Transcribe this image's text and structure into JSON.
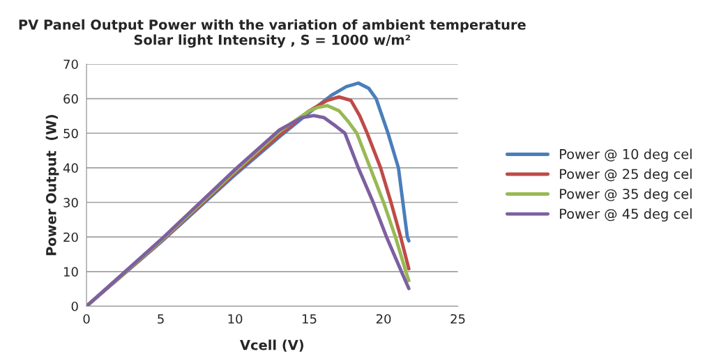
{
  "chart_data": {
    "type": "line",
    "title": "PV Panel Output Power with the variation of ambient temperature\nSolar light Intensity , S = 1000 w/m²",
    "xlabel": "Vcell (V)",
    "ylabel": "Power Output  (W)",
    "xlim": [
      0,
      25
    ],
    "xticks": [
      0,
      5,
      10,
      15,
      20,
      25
    ],
    "ylim": [
      0,
      70
    ],
    "yticks": [
      0,
      10,
      20,
      30,
      40,
      50,
      60,
      70
    ],
    "grid": "y",
    "legend": "right",
    "marker": "none",
    "line_style": "solid",
    "series": [
      {
        "name": "Power @ 10 deg cel",
        "color": "#4a7ebb",
        "x": [
          0,
          5,
          10,
          13,
          15,
          16.5,
          17.5,
          18.3,
          19,
          19.5,
          20.3,
          21.0,
          21.3,
          21.6,
          21.7
        ],
        "values": [
          0,
          18.5,
          38,
          49,
          56,
          61,
          63.5,
          64.5,
          63,
          60,
          50,
          40,
          30,
          20,
          18.9
        ]
      },
      {
        "name": "Power @ 25 deg cel",
        "color": "#be4b48",
        "x": [
          0,
          5,
          10,
          13,
          15,
          16.2,
          17.0,
          17.8,
          18.4,
          18.9,
          19.8,
          20.5,
          21.15,
          21.7
        ],
        "values": [
          0,
          18.7,
          38.5,
          49.5,
          56.5,
          59.5,
          60.5,
          59.5,
          55,
          50,
          40,
          30,
          20,
          10.8
        ]
      },
      {
        "name": "Power @ 35 deg cel",
        "color": "#98b954",
        "x": [
          0,
          5,
          10,
          13,
          15,
          15.6,
          16.2,
          17.0,
          17.6,
          18.2,
          19.1,
          20.0,
          20.8,
          21.5,
          21.7
        ],
        "values": [
          0,
          18.9,
          39,
          50.5,
          56.5,
          57.5,
          58,
          56.5,
          53.5,
          50,
          40,
          30,
          20,
          10,
          7.4
        ]
      },
      {
        "name": "Power @ 45 deg cel",
        "color": "#7d60a0",
        "x": [
          0,
          5,
          10,
          13,
          14.5,
          15.3,
          16.0,
          16.8,
          17.4,
          18.3,
          19.3,
          20.2,
          21.2,
          21.7
        ],
        "values": [
          0,
          19.2,
          39.5,
          51,
          54.5,
          55.1,
          54.5,
          52,
          50,
          40,
          30,
          20,
          10,
          5.1
        ]
      }
    ]
  }
}
